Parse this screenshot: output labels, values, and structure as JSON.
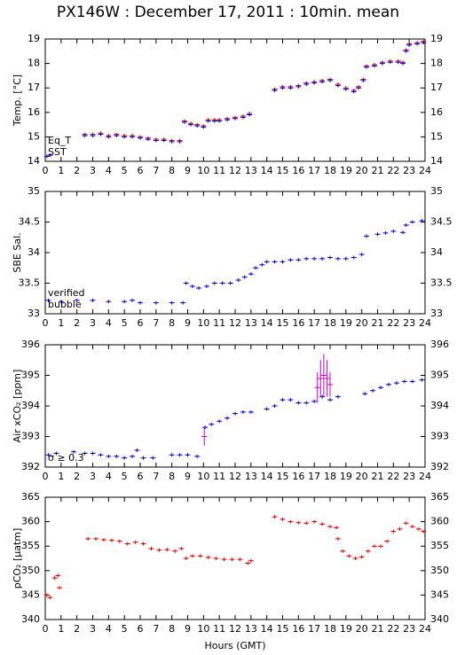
{
  "chart_data": [
    {
      "type": "scatter",
      "title": "PX146W : December 17, 2011 : 10min. mean",
      "ylabel": "Temp. [°C]",
      "xlim": [
        0,
        24
      ],
      "xticks": [
        0,
        1,
        2,
        3,
        4,
        5,
        6,
        7,
        8,
        9,
        10,
        11,
        12,
        13,
        14,
        15,
        16,
        17,
        18,
        19,
        20,
        21,
        22,
        23,
        24
      ],
      "ylim": [
        14,
        19
      ],
      "yticks": [
        14,
        15,
        16,
        17,
        18,
        19
      ],
      "legend": "lower left",
      "series": [
        {
          "name": "Eq_T",
          "color": "#dd0000",
          "x": [
            2.5,
            3,
            3.5,
            4,
            4.5,
            5,
            5.5,
            6,
            6.5,
            7,
            7.5,
            8,
            8.5,
            8.8,
            9.2,
            9.6,
            10,
            10.3,
            10.7,
            11,
            11.5,
            12,
            12.5,
            12.9,
            14.5,
            15,
            15.5,
            16,
            16.5,
            17,
            17.5,
            18,
            18.5,
            19,
            19.5,
            19.8,
            20.1,
            20.3,
            20.8,
            21.3,
            21.8,
            22.3,
            22.6,
            22.8,
            23,
            23.5,
            23.9
          ],
          "values": [
            15.1,
            15.1,
            15.15,
            15.05,
            15.1,
            15.05,
            15.05,
            15.0,
            14.95,
            14.9,
            14.9,
            14.85,
            14.85,
            15.65,
            15.55,
            15.5,
            15.45,
            15.7,
            15.7,
            15.7,
            15.75,
            15.8,
            15.85,
            15.95,
            16.95,
            17.05,
            17.05,
            17.1,
            17.2,
            17.25,
            17.3,
            17.35,
            17.15,
            17.0,
            16.9,
            17.05,
            17.35,
            17.9,
            17.95,
            18.05,
            18.1,
            18.1,
            18.05,
            18.55,
            18.8,
            18.85,
            18.9
          ]
        },
        {
          "name": "SST",
          "color": "#0000cc",
          "x": [
            0.1,
            0.3,
            2.5,
            3,
            3.5,
            4,
            4.5,
            5,
            5.5,
            6,
            6.5,
            7,
            7.5,
            8,
            8.5,
            8.8,
            9.2,
            9.6,
            10,
            10.3,
            10.7,
            11,
            11.5,
            12,
            12.5,
            12.9,
            14.5,
            15,
            15.5,
            16,
            16.5,
            17,
            17.5,
            18,
            18.5,
            19,
            19.5,
            19.8,
            20.1,
            20.3,
            20.8,
            21.3,
            21.8,
            22.3,
            22.6,
            22.8,
            23,
            23.5,
            23.9
          ],
          "values": [
            14.2,
            14.25,
            15.05,
            15.05,
            15.1,
            15.0,
            15.05,
            15.0,
            15.0,
            14.95,
            14.9,
            14.85,
            14.85,
            14.8,
            14.8,
            15.6,
            15.5,
            15.45,
            15.4,
            15.65,
            15.65,
            15.65,
            15.7,
            15.75,
            15.8,
            15.9,
            16.9,
            17.0,
            17.0,
            17.05,
            17.15,
            17.2,
            17.25,
            17.3,
            17.1,
            16.95,
            16.85,
            17.0,
            17.3,
            17.85,
            17.9,
            18.0,
            18.05,
            18.05,
            18.0,
            18.5,
            18.75,
            18.8,
            18.85
          ]
        }
      ]
    },
    {
      "type": "scatter",
      "ylabel": "SBE Sal.",
      "xlim": [
        0,
        24
      ],
      "xticks": [
        0,
        1,
        2,
        3,
        4,
        5,
        6,
        7,
        8,
        9,
        10,
        11,
        12,
        13,
        14,
        15,
        16,
        17,
        18,
        19,
        20,
        21,
        22,
        23,
        24
      ],
      "ylim": [
        33,
        35
      ],
      "yticks": [
        33,
        33.5,
        34,
        34.5,
        35
      ],
      "legend": "lower left",
      "series": [
        {
          "name": "verified",
          "color": "#0000cc",
          "x": [
            0.2,
            1,
            2,
            3,
            4,
            5,
            5.5,
            6,
            7,
            8,
            8.7,
            8.9,
            9.3,
            9.7,
            10.2,
            10.7,
            11.2,
            11.7,
            12.2,
            12.6,
            13,
            13.3,
            13.7,
            14,
            14.5,
            15,
            15.5,
            16,
            16.5,
            17,
            17.5,
            18,
            18.5,
            19,
            19.5,
            20,
            20.3,
            21,
            21.5,
            22,
            22.6,
            22.8,
            23.2,
            23.8
          ],
          "values": [
            33.22,
            33.2,
            33.22,
            33.22,
            33.2,
            33.2,
            33.22,
            33.18,
            33.18,
            33.18,
            33.18,
            33.5,
            33.45,
            33.42,
            33.45,
            33.5,
            33.5,
            33.5,
            33.55,
            33.6,
            33.65,
            33.75,
            33.8,
            33.85,
            33.85,
            33.85,
            33.88,
            33.88,
            33.9,
            33.9,
            33.9,
            33.92,
            33.9,
            33.9,
            33.92,
            33.97,
            34.27,
            34.3,
            34.32,
            34.35,
            34.33,
            34.45,
            34.5,
            34.52
          ]
        },
        {
          "name": "bubble",
          "color": "#cc00cc",
          "x": [],
          "values": []
        }
      ]
    },
    {
      "type": "scatter",
      "ylabel": "Air xCO₂ [ppm]",
      "xlim": [
        0,
        24
      ],
      "xticks": [
        0,
        1,
        2,
        3,
        4,
        5,
        6,
        7,
        8,
        9,
        10,
        11,
        12,
        13,
        14,
        15,
        16,
        17,
        18,
        19,
        20,
        21,
        22,
        23,
        24
      ],
      "ylim": [
        392,
        396
      ],
      "yticks": [
        392,
        393,
        394,
        395,
        396
      ],
      "legend": "lower left",
      "series": [
        {
          "color": "#0000cc",
          "x": [
            0.2,
            0.7,
            1.8,
            2.5,
            3,
            3.5,
            4,
            4.5,
            5,
            5.5,
            5.8,
            6.2,
            6.8,
            8,
            8.5,
            9,
            9.6,
            10.1,
            10.5,
            11,
            11.5,
            12,
            12.5,
            13,
            14,
            14.5,
            15,
            15.5,
            16,
            16.5,
            17,
            17.5,
            18,
            18.5,
            20.2,
            20.7,
            21.2,
            21.7,
            22.2,
            22.7,
            23.2,
            23.8
          ],
          "values": [
            392.4,
            392.45,
            392.5,
            392.45,
            392.45,
            392.4,
            392.35,
            392.35,
            392.3,
            392.35,
            392.55,
            392.3,
            392.3,
            392.4,
            392.4,
            392.4,
            392.35,
            393.3,
            393.4,
            393.5,
            393.6,
            393.75,
            393.8,
            393.8,
            393.9,
            394.0,
            394.2,
            394.2,
            394.1,
            394.1,
            394.15,
            394.3,
            394.2,
            394.3,
            394.4,
            394.5,
            394.6,
            394.7,
            394.75,
            394.8,
            394.8,
            394.85
          ]
        },
        {
          "name": "σ ≥ 0.3",
          "color": "#cc00cc",
          "x": [
            10.05,
            17.2,
            17.4,
            17.6,
            17.8,
            18
          ],
          "values": [
            393.0,
            394.6,
            394.9,
            395.0,
            394.9,
            394.7
          ],
          "errors": [
            0.3,
            0.5,
            0.6,
            0.7,
            0.6,
            0.4
          ]
        }
      ]
    },
    {
      "type": "scatter",
      "ylabel": "pCO₂ [μatm]",
      "xlabel": "Hours (GMT)",
      "xlim": [
        0,
        24
      ],
      "xticks": [
        0,
        1,
        2,
        3,
        4,
        5,
        6,
        7,
        8,
        9,
        10,
        11,
        12,
        13,
        14,
        15,
        16,
        17,
        18,
        19,
        20,
        21,
        22,
        23,
        24
      ],
      "ylim": [
        340,
        365
      ],
      "yticks": [
        340,
        345,
        350,
        355,
        360,
        365
      ],
      "series": [
        {
          "color": "#dd0000",
          "x": [
            0.1,
            0.3,
            0.6,
            0.8,
            0.9,
            2.7,
            3.2,
            3.7,
            4.2,
            4.7,
            5.2,
            5.7,
            6.2,
            6.7,
            7.2,
            7.7,
            8.2,
            8.6,
            8.9,
            9.3,
            9.8,
            10.3,
            10.8,
            11.3,
            11.8,
            12.3,
            12.8,
            13,
            14.5,
            15,
            15.5,
            16,
            16.5,
            17,
            17.5,
            18,
            18.4,
            18.5,
            18.8,
            19.2,
            19.6,
            20,
            20.4,
            20.8,
            21.2,
            21.6,
            22,
            22.4,
            22.8,
            23.2,
            23.6,
            23.9
          ],
          "values": [
            345,
            344.5,
            348.5,
            349,
            346.5,
            356.5,
            356.5,
            356.3,
            356.2,
            356,
            355.5,
            355.8,
            355.5,
            354.5,
            354.2,
            354.3,
            354,
            354.5,
            352.5,
            353,
            353,
            352.7,
            352.5,
            352.3,
            352.3,
            352.3,
            351.5,
            352,
            361,
            360.5,
            360,
            359.8,
            359.7,
            360,
            359.5,
            359,
            358.8,
            356.5,
            354,
            353,
            352.5,
            352.8,
            354,
            355,
            355,
            356,
            358,
            358.5,
            359.7,
            359,
            358.5,
            358
          ]
        }
      ]
    }
  ]
}
